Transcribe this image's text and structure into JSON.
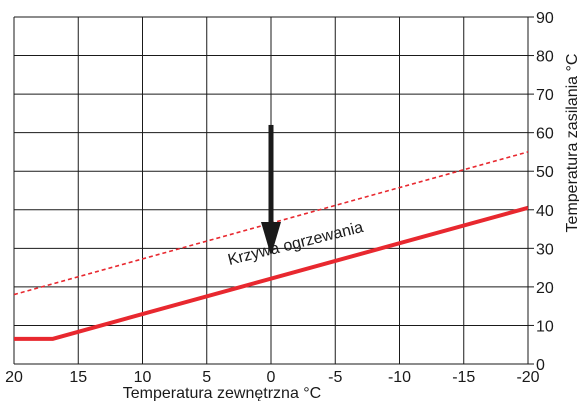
{
  "chart_data": {
    "type": "line",
    "x_axis": {
      "label": "Temperatura zewnętrzna °C",
      "range": [
        20,
        -20
      ],
      "ticks": [
        20,
        15,
        10,
        5,
        0,
        -5,
        -10,
        -15,
        -20
      ],
      "tick_labels": [
        "20",
        "15",
        "10",
        "5",
        "0",
        "-5",
        "-10",
        "-15",
        "-20"
      ]
    },
    "y_axis": {
      "label": "Temperatura zasilania °C",
      "range": [
        0,
        90
      ],
      "ticks": [
        0,
        10,
        20,
        30,
        40,
        50,
        60,
        70,
        80,
        90
      ],
      "tick_labels": [
        "0",
        "10",
        "20",
        "30",
        "40",
        "50",
        "60",
        "70",
        "80",
        "90"
      ],
      "position": "right"
    },
    "grid": true,
    "series": [
      {
        "style": "solid",
        "color": "#e8282f",
        "x": [
          20,
          17,
          -20
        ],
        "y": [
          6.5,
          6.5,
          40.5
        ]
      },
      {
        "style": "dashed",
        "color": "#e8282f",
        "x": [
          20,
          -20
        ],
        "y": [
          18,
          55
        ]
      }
    ],
    "annotations": [
      {
        "text": "Krzywa ogrzewania",
        "x": -2,
        "y": 30
      }
    ],
    "arrow": {
      "x": 0,
      "y_from": 62,
      "y_to": 28,
      "direction": "down",
      "color": "#1a1a1a"
    }
  }
}
